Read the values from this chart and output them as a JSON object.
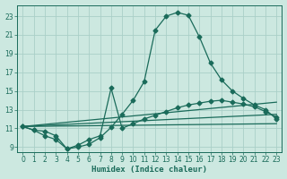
{
  "xlabel": "Humidex (Indice chaleur)",
  "bg_color": "#cce8e0",
  "grid_color": "#aacfc8",
  "line_color": "#1a6b5a",
  "xlim": [
    -0.5,
    23.5
  ],
  "ylim": [
    8.5,
    24.2
  ],
  "xticks": [
    0,
    1,
    2,
    3,
    4,
    5,
    6,
    7,
    8,
    9,
    10,
    11,
    12,
    13,
    14,
    15,
    16,
    17,
    18,
    19,
    20,
    21,
    22,
    23
  ],
  "yticks": [
    9,
    11,
    13,
    15,
    17,
    19,
    21,
    23
  ],
  "line1_x": [
    0,
    1,
    2,
    3,
    4,
    5,
    6,
    7,
    8,
    9,
    10,
    11,
    12,
    13,
    14,
    15,
    16,
    17,
    18,
    19,
    20,
    21,
    22,
    23
  ],
  "line1_y": [
    11.2,
    10.8,
    10.7,
    10.2,
    8.8,
    9.0,
    9.3,
    10.0,
    11.1,
    12.5,
    14.0,
    16.0,
    21.5,
    23.0,
    23.4,
    23.1,
    20.8,
    18.0,
    16.2,
    15.0,
    14.2,
    13.5,
    13.0,
    12.0
  ],
  "line2_x": [
    0,
    1,
    2,
    3,
    4,
    5,
    6,
    7,
    8,
    9,
    10,
    11,
    12,
    13,
    14,
    15,
    16,
    17,
    18,
    19,
    20,
    21,
    22,
    23
  ],
  "line2_y": [
    11.2,
    10.8,
    10.2,
    9.8,
    8.8,
    9.2,
    9.8,
    10.2,
    15.3,
    11.0,
    11.5,
    12.0,
    12.4,
    12.8,
    13.2,
    13.5,
    13.7,
    13.9,
    14.0,
    13.8,
    13.6,
    13.3,
    12.8,
    12.2
  ],
  "line3_x": [
    0,
    23
  ],
  "line3_y": [
    11.2,
    13.8
  ],
  "line4_x": [
    0,
    23
  ],
  "line4_y": [
    11.2,
    12.5
  ],
  "line5_x": [
    0,
    23
  ],
  "line5_y": [
    11.2,
    11.5
  ]
}
